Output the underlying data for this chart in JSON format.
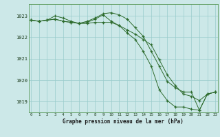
{
  "title": "Graphe pression niveau de la mer (hPa)",
  "background_color": "#cce8e8",
  "grid_color": "#99cccc",
  "line_color": "#2d6b2d",
  "hours": [
    0,
    1,
    2,
    3,
    4,
    5,
    6,
    7,
    8,
    9,
    10,
    11,
    12,
    13,
    14,
    15,
    16,
    17,
    18,
    19,
    20,
    21,
    22,
    23
  ],
  "series1": [
    1022.8,
    1022.75,
    1022.8,
    1022.85,
    1022.75,
    1022.7,
    1022.65,
    1022.7,
    1022.85,
    1023.05,
    1022.75,
    1022.55,
    1022.2,
    1021.9,
    1021.35,
    1020.65,
    1019.55,
    1019.05,
    1018.75,
    1018.75,
    1018.65,
    1018.6,
    1019.35,
    1019.45
  ],
  "series2": [
    1022.8,
    1022.75,
    1022.8,
    1022.85,
    1022.75,
    1022.7,
    1022.65,
    1022.65,
    1022.7,
    1022.7,
    1022.7,
    1022.55,
    1022.35,
    1022.15,
    1021.9,
    1021.65,
    1020.95,
    1020.25,
    1019.75,
    1019.35,
    1019.25,
    1019.05,
    1019.35,
    1019.45
  ],
  "series3": [
    1022.8,
    1022.75,
    1022.8,
    1023.0,
    1022.9,
    1022.75,
    1022.65,
    1022.75,
    1022.9,
    1023.1,
    1023.15,
    1023.05,
    1022.85,
    1022.45,
    1022.05,
    1021.35,
    1020.65,
    1019.95,
    1019.65,
    1019.45,
    1019.45,
    1018.6,
    1019.35,
    1019.45
  ],
  "ylim_min": 1018.5,
  "ylim_max": 1023.55,
  "yticks": [
    1019,
    1020,
    1021,
    1022,
    1023
  ],
  "xlim_min": 0,
  "xlim_max": 23
}
